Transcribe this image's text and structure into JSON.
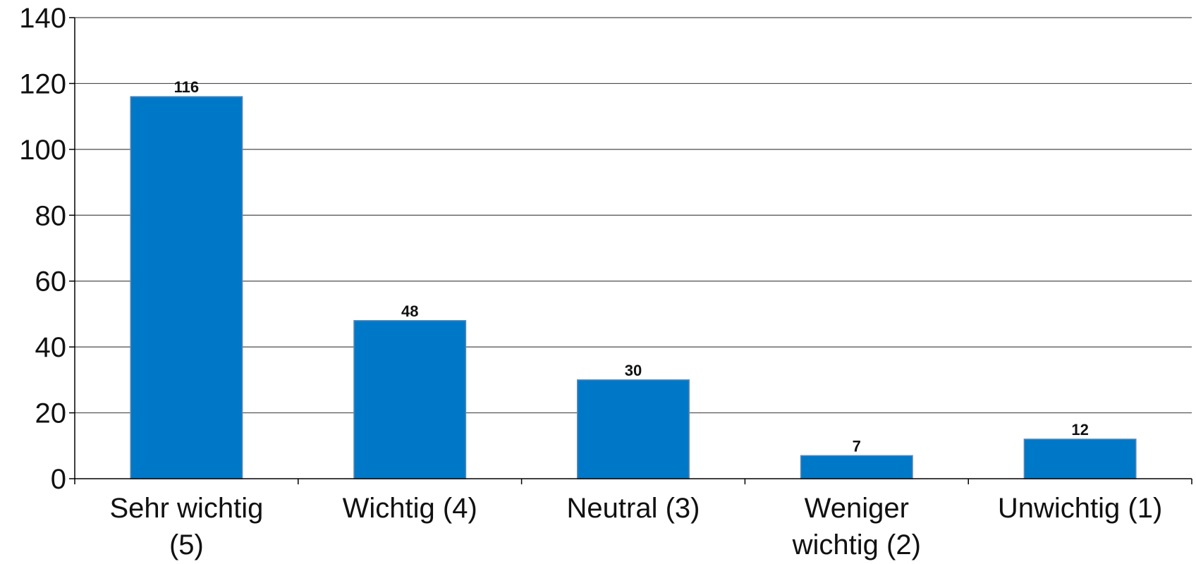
{
  "chart_data": {
    "type": "bar",
    "title": "",
    "xlabel": "",
    "ylabel": "",
    "categories": [
      [
        "Sehr wichtig",
        "(5)"
      ],
      [
        "Wichtig (4)"
      ],
      [
        "Neutral (3)"
      ],
      [
        "Weniger",
        "wichtig (2)"
      ],
      [
        "Unwichtig (1)"
      ]
    ],
    "values": [
      116,
      48,
      30,
      7,
      12
    ],
    "ylim": [
      0,
      140
    ],
    "yticks": [
      0,
      20,
      40,
      60,
      80,
      100,
      120,
      140
    ],
    "grid": true,
    "legend": "none",
    "bar_color": "#0078c8"
  }
}
